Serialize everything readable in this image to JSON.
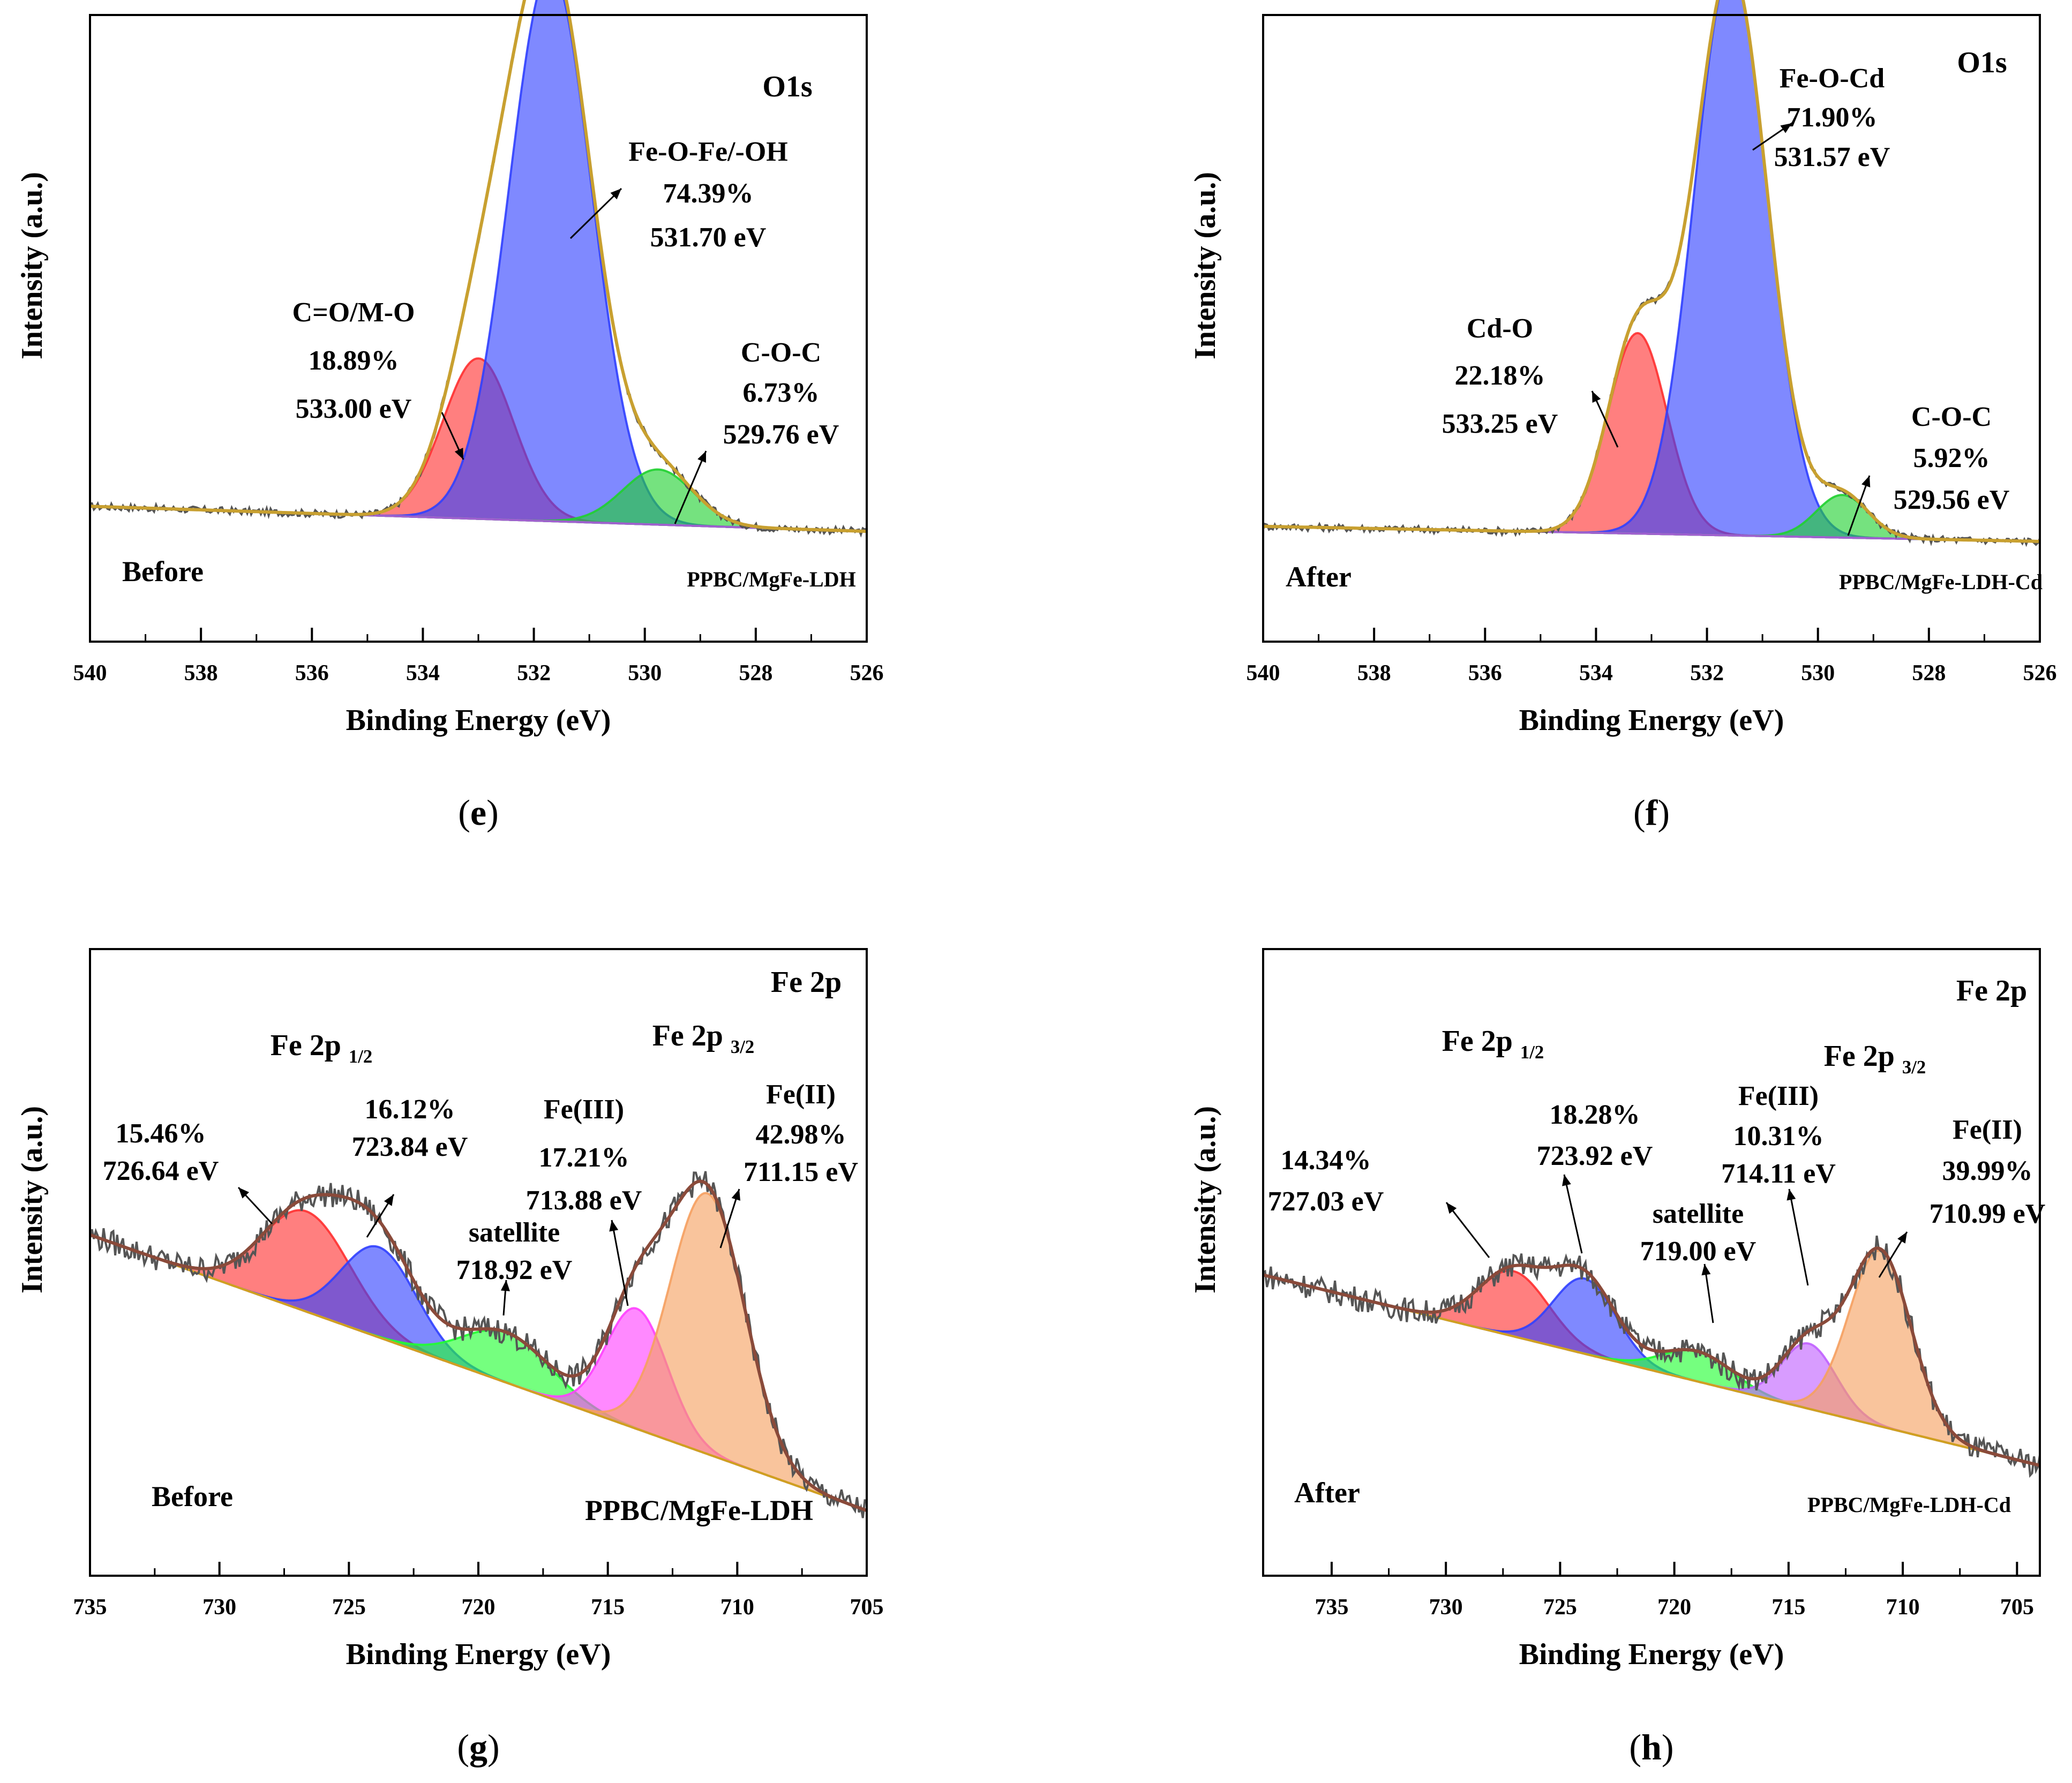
{
  "chart_data": [
    {
      "id": "e",
      "type": "area",
      "tag": "(e)",
      "xlabel": "Binding Energy (eV)",
      "ylabel": "Intensity (a.u.)",
      "xlim": [
        540,
        526
      ],
      "xticks": [
        540,
        538,
        536,
        534,
        532,
        530,
        528,
        526
      ],
      "ylim": [
        0,
        1.25
      ],
      "spectrum": "O1s",
      "state": "Before",
      "sample": "PPBC/MgFe-LDH",
      "baseline": {
        "left": 0.27,
        "right": 0.22
      },
      "noise": 0.007,
      "peaks": [
        {
          "name": "C=O/M-O",
          "center": 533.0,
          "fwhm": 1.5,
          "height": 0.32,
          "color": "#ff3030"
        },
        {
          "name": "Fe-O-Fe/-OH",
          "center": 531.7,
          "fwhm": 1.75,
          "height": 1.1,
          "color": "#3040ff"
        },
        {
          "name": "C-O-C",
          "center": 529.76,
          "fwhm": 1.5,
          "height": 0.11,
          "color": "#20d030"
        }
      ],
      "annotations": [
        {
          "lines": [
            "C=O/M-O",
            "18.89%",
            "533.00 eV"
          ]
        },
        {
          "lines": [
            "Fe-O-Fe/-OH",
            "74.39%",
            "531.70 eV"
          ]
        },
        {
          "lines": [
            "C-O-C",
            "6.73%",
            "529.76 eV"
          ]
        }
      ]
    },
    {
      "id": "f",
      "type": "area",
      "tag": "(f)",
      "xlabel": "Binding Energy (eV)",
      "ylabel": "Intensity (a.u.)",
      "xlim": [
        540,
        526
      ],
      "xticks": [
        540,
        538,
        536,
        534,
        532,
        530,
        528,
        526
      ],
      "ylim": [
        0,
        1.25
      ],
      "spectrum": "O1s",
      "state": "After",
      "sample": "PPBC/MgFe-LDH-Cd",
      "baseline": {
        "left": 0.23,
        "right": 0.2
      },
      "noise": 0.007,
      "peaks": [
        {
          "name": "Cd-O",
          "center": 533.25,
          "fwhm": 1.25,
          "height": 0.4,
          "color": "#ff3030"
        },
        {
          "name": "Fe-O-Cd",
          "center": 531.57,
          "fwhm": 1.55,
          "height": 1.13,
          "color": "#3040ff"
        },
        {
          "name": "C-O-C",
          "center": 529.56,
          "fwhm": 1.1,
          "height": 0.085,
          "color": "#20d030"
        }
      ],
      "annotations": [
        {
          "lines": [
            "Cd-O",
            "22.18%",
            "533.25 eV"
          ]
        },
        {
          "lines": [
            "Fe-O-Cd",
            "71.90%",
            "531.57 eV"
          ]
        },
        {
          "lines": [
            "C-O-C",
            "5.92%",
            "529.56 eV"
          ]
        }
      ]
    },
    {
      "id": "g",
      "type": "area",
      "tag": "(g)",
      "xlabel": "Binding Energy (eV)",
      "ylabel": "Intensity (a.u.)",
      "xlim": [
        735,
        705
      ],
      "xticks": [
        735,
        730,
        725,
        720,
        715,
        710,
        705
      ],
      "ylim": [
        0,
        1.25
      ],
      "spectrum": "Fe 2p",
      "state": "Before",
      "sample": "PPBC/MgFe-LDH",
      "baseline": {
        "left": 0.68,
        "right": 0.13
      },
      "noise": 0.025,
      "peaks": [
        {
          "name": "Fe 2p1/2 726.64",
          "center": 726.64,
          "fwhm": 4.0,
          "height": 0.2,
          "color": "#ff3030"
        },
        {
          "name": "Fe 2p1/2 723.84",
          "center": 723.84,
          "fwhm": 3.4,
          "height": 0.18,
          "color": "#3040ff"
        },
        {
          "name": "satellite",
          "center": 718.92,
          "fwhm": 4.0,
          "height": 0.1,
          "color": "#20ff30"
        },
        {
          "name": "Fe(III)",
          "center": 713.88,
          "fwhm": 2.8,
          "height": 0.24,
          "color": "#ff40ff"
        },
        {
          "name": "Fe(II)",
          "center": 711.15,
          "fwhm": 3.4,
          "height": 0.52,
          "color": "#f5a060"
        }
      ],
      "annotations": [
        {
          "lines": [
            "Fe 2p",
            "1/2"
          ]
        },
        {
          "lines": [
            "Fe 2p",
            "3/2"
          ]
        },
        {
          "lines": [
            "15.46%",
            "726.64 eV"
          ]
        },
        {
          "lines": [
            "16.12%",
            "723.84 eV"
          ]
        },
        {
          "lines": [
            "satellite",
            "718.92 eV"
          ]
        },
        {
          "lines": [
            "Fe(III)",
            "17.21%",
            "713.88 eV"
          ]
        },
        {
          "lines": [
            "Fe(II)",
            "42.98%",
            "711.15 eV"
          ]
        }
      ]
    },
    {
      "id": "h",
      "type": "area",
      "tag": "(h)",
      "xlabel": "Binding Energy (eV)",
      "ylabel": "Intensity (a.u.)",
      "xlim": [
        738,
        704
      ],
      "xticks": [
        735,
        730,
        725,
        720,
        715,
        710,
        705
      ],
      "ylim": [
        0,
        1.25
      ],
      "spectrum": "Fe 2p",
      "state": "After",
      "sample": "PPBC/MgFe-LDH-Cd",
      "baseline": {
        "left": 0.6,
        "right": 0.22
      },
      "noise": 0.025,
      "peaks": [
        {
          "name": "Fe 2p1/2 727.03",
          "center": 727.03,
          "fwhm": 3.6,
          "height": 0.13,
          "color": "#ff3030"
        },
        {
          "name": "Fe 2p1/2 723.92",
          "center": 723.92,
          "fwhm": 3.2,
          "height": 0.15,
          "color": "#3040ff"
        },
        {
          "name": "satellite",
          "center": 719.0,
          "fwhm": 3.6,
          "height": 0.06,
          "color": "#20ff30"
        },
        {
          "name": "Fe(III)",
          "center": 714.11,
          "fwhm": 2.8,
          "height": 0.13,
          "color": "#c060ff"
        },
        {
          "name": "Fe(II)",
          "center": 710.99,
          "fwhm": 3.2,
          "height": 0.35,
          "color": "#f5a060"
        }
      ],
      "annotations": [
        {
          "lines": [
            "Fe 2p",
            "1/2"
          ]
        },
        {
          "lines": [
            "Fe 2p",
            "3/2"
          ]
        },
        {
          "lines": [
            "14.34%",
            "727.03 eV"
          ]
        },
        {
          "lines": [
            "18.28%",
            "723.92 eV"
          ]
        },
        {
          "lines": [
            "satellite",
            "719.00 eV"
          ]
        },
        {
          "lines": [
            "Fe(III)",
            "10.31%",
            "714.11 eV"
          ]
        },
        {
          "lines": [
            "Fe(II)",
            "39.99%",
            "710.99 eV"
          ]
        }
      ]
    }
  ]
}
